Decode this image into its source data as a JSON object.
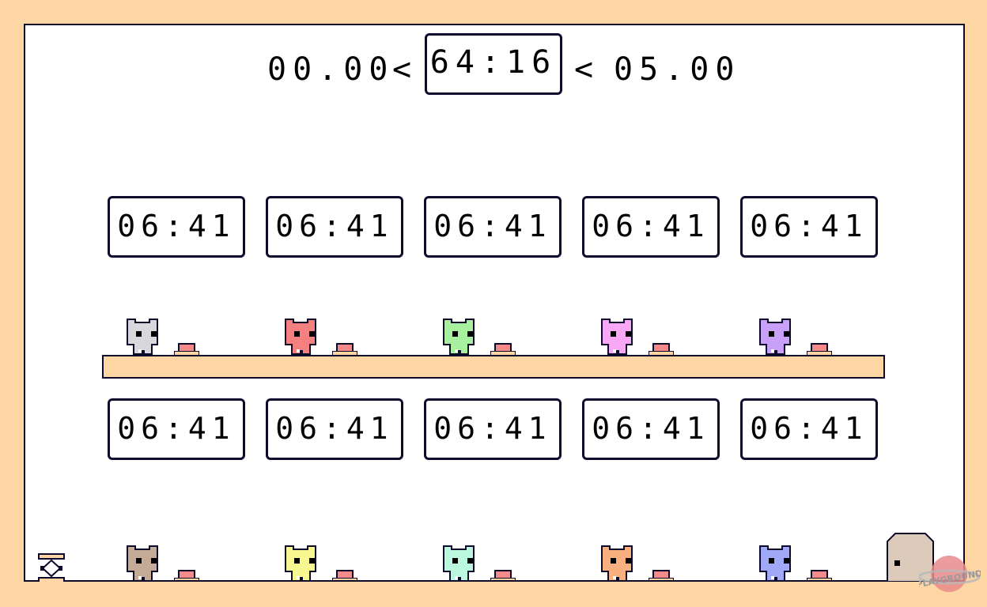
{
  "hud": {
    "best_time": "00.00",
    "current_time": "64:16",
    "target_time": "05.00",
    "separator_1": "<",
    "separator_2": "<"
  },
  "timers_row_1": [
    {
      "value": "06:41"
    },
    {
      "value": "06:41"
    },
    {
      "value": "06:41"
    },
    {
      "value": "06:41"
    },
    {
      "value": "06:41"
    }
  ],
  "timers_row_2": [
    {
      "value": "06:41"
    },
    {
      "value": "06:41"
    },
    {
      "value": "06:41"
    },
    {
      "value": "06:41"
    },
    {
      "value": "06:41"
    }
  ],
  "players_row_1": [
    {
      "color": "#d8d8dc"
    },
    {
      "color": "#f58080"
    },
    {
      "color": "#a8f0a0"
    },
    {
      "color": "#f8a8f4"
    },
    {
      "color": "#c8a0f8"
    }
  ],
  "players_row_2": [
    {
      "color": "#c4ab98"
    },
    {
      "color": "#f8f890"
    },
    {
      "color": "#bcf8e0"
    },
    {
      "color": "#f8b080"
    },
    {
      "color": "#a0a8f8"
    }
  ],
  "colors": {
    "background": "#fed6a4",
    "outline": "#0e0a2c",
    "button": "#f48a8a",
    "door": "#dccbbb"
  },
  "watermark": "PLAYGROUND"
}
